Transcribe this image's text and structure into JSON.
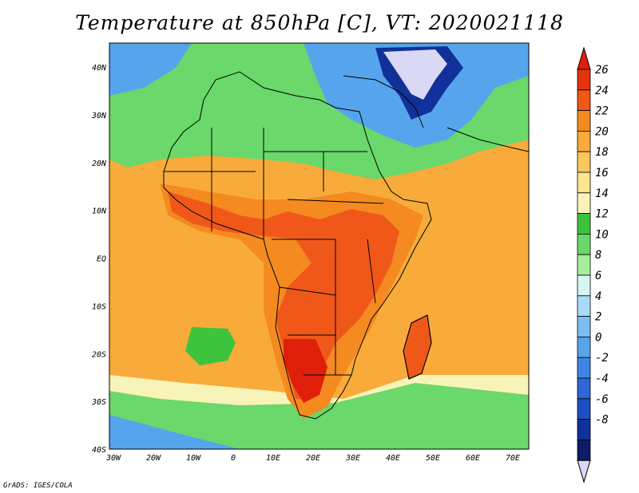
{
  "title": "Temperature at 850hPa [C], VT: 2020021118",
  "credit": "GrADS: IGES/COLA",
  "map": {
    "lon_range": [
      -30,
      75
    ],
    "lat_range": [
      -40,
      45
    ],
    "lon_ticks": [
      "30W",
      "20W",
      "10W",
      "0",
      "10E",
      "20E",
      "30E",
      "40E",
      "50E",
      "60E",
      "70E"
    ],
    "lat_ticks": [
      "40N",
      "30N",
      "20N",
      "10N",
      "EQ",
      "10S",
      "20S",
      "30S",
      "40S"
    ]
  },
  "colorbar": {
    "labels": [
      "26",
      "24",
      "22",
      "20",
      "18",
      "16",
      "14",
      "12",
      "10",
      "8",
      "6",
      "4",
      "2",
      "0",
      "-2",
      "-4",
      "-6",
      "-8"
    ],
    "colors": [
      "#e5330f",
      "#f0581a",
      "#f58a20",
      "#f8ab3a",
      "#fbc85e",
      "#fde48f",
      "#f8f3b8",
      "#3ec43c",
      "#6ad86a",
      "#a6ee9e",
      "#d7f6f2",
      "#a8dcf6",
      "#7bbff2",
      "#56a4ec",
      "#3f86e4",
      "#2d68d6",
      "#1e4ec2",
      "#123099",
      "#0d1d68"
    ],
    "top_color": "#e01f0a",
    "bottom_color": "#d9d8f5"
  },
  "palette": {
    "ocean_warm": "#f8ab3a",
    "ocean_mid": "#fbc85e",
    "ocean_cool": "#f8f3b8",
    "land_hot": "#f0581a",
    "land_warm": "#f58a20",
    "green": "#6ad86a",
    "green_dark": "#3ec43c",
    "cold_blue": "#56a4ec",
    "deep_blue": "#123099",
    "lavender": "#d9d8f5",
    "border": "#000000"
  }
}
